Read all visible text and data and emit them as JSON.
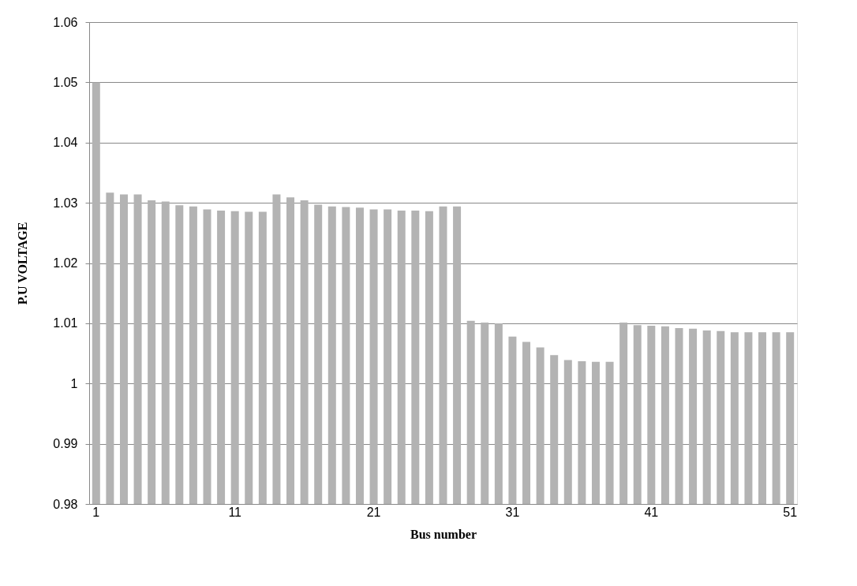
{
  "chart_data": {
    "type": "bar",
    "xlabel": "Bus number",
    "ylabel": "P.U VOLTAGE",
    "categories": [
      "1",
      null,
      null,
      null,
      null,
      null,
      null,
      null,
      null,
      null,
      "11",
      null,
      null,
      null,
      null,
      null,
      null,
      null,
      null,
      null,
      "21",
      null,
      null,
      null,
      null,
      null,
      null,
      null,
      null,
      null,
      "31",
      null,
      null,
      null,
      null,
      null,
      null,
      null,
      null,
      null,
      "41",
      null,
      null,
      null,
      null,
      null,
      null,
      null,
      null,
      null,
      "51"
    ],
    "values": [
      1.05,
      1.0317,
      1.0314,
      1.0314,
      1.0304,
      1.0302,
      1.0296,
      1.0294,
      1.0289,
      1.0287,
      1.0286,
      1.0285,
      1.0285,
      1.0314,
      1.0309,
      1.0304,
      1.0297,
      1.0294,
      1.0293,
      1.0292,
      1.0289,
      1.0289,
      1.0287,
      1.0287,
      1.0286,
      1.0294,
      1.0294,
      1.0104,
      1.0101,
      1.01,
      1.0078,
      1.0069,
      1.006,
      1.0047,
      1.0039,
      1.0037,
      1.0036,
      1.0036,
      1.0101,
      1.0097,
      1.0096,
      1.0095,
      1.0092,
      1.0091,
      1.0088,
      1.0087,
      1.0085,
      1.0085,
      1.0085,
      1.0085,
      1.0085
    ],
    "color": "#b3b3b3",
    "ylim": [
      0.98,
      1.06
    ],
    "yticks": [
      0.98,
      0.99,
      1,
      1.01,
      1.02,
      1.03,
      1.04,
      1.05,
      1.06
    ],
    "grid": "y"
  }
}
